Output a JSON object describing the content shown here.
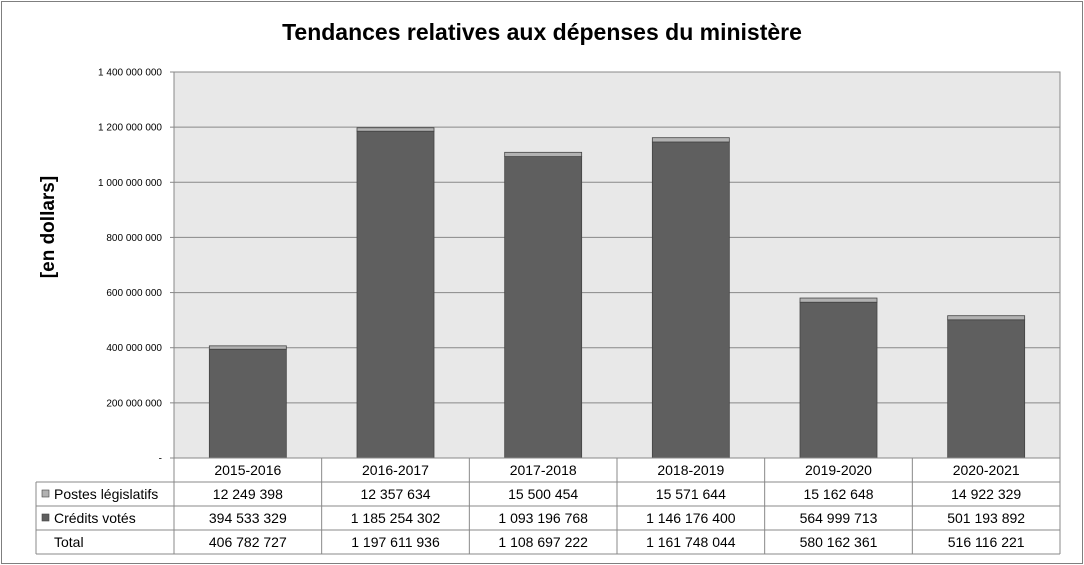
{
  "chart_data": {
    "type": "bar",
    "stacked": true,
    "title": "Tendances relatives aux dépenses du ministère",
    "ylabel": "[en dollars]",
    "ylim": [
      0,
      1400000000
    ],
    "yticks": [
      0,
      200000000,
      400000000,
      600000000,
      800000000,
      1000000000,
      1200000000,
      1400000000
    ],
    "ytick_labels": [
      "-",
      "200 000 000",
      "400 000 000",
      "600 000 000",
      "800 000 000",
      "1 000 000 000",
      "1 200 000 000",
      "1 400 000 000"
    ],
    "grid": true,
    "categories": [
      "2015-2016",
      "2016-2017",
      "2017-2018",
      "2018-2019",
      "2019-2020",
      "2020-2021"
    ],
    "series": [
      {
        "name": "Crédits votés",
        "color": "#5f5f5f",
        "values": [
          394533329,
          1185254302,
          1093196768,
          1146176400,
          564999713,
          501193892
        ],
        "labels": [
          "394 533 329",
          "1 185 254 302",
          "1 093 196 768",
          "1 146 176 400",
          "564 999 713",
          "501 193 892"
        ]
      },
      {
        "name": "Postes législatifs",
        "color": "#b2b2b2",
        "values": [
          12249398,
          12357634,
          15500454,
          15571644,
          15162648,
          14922329
        ],
        "labels": [
          "12 249 398",
          "12 357 634",
          "15 500 454",
          "15 571 644",
          "15 162 648",
          "14 922 329"
        ]
      }
    ],
    "table": {
      "total_label": "Total",
      "totals": [
        "406 782 727",
        "1 197 611 936",
        "1 108 697 222",
        "1 161 748 044",
        "580 162 361",
        "516 116 221"
      ]
    }
  }
}
